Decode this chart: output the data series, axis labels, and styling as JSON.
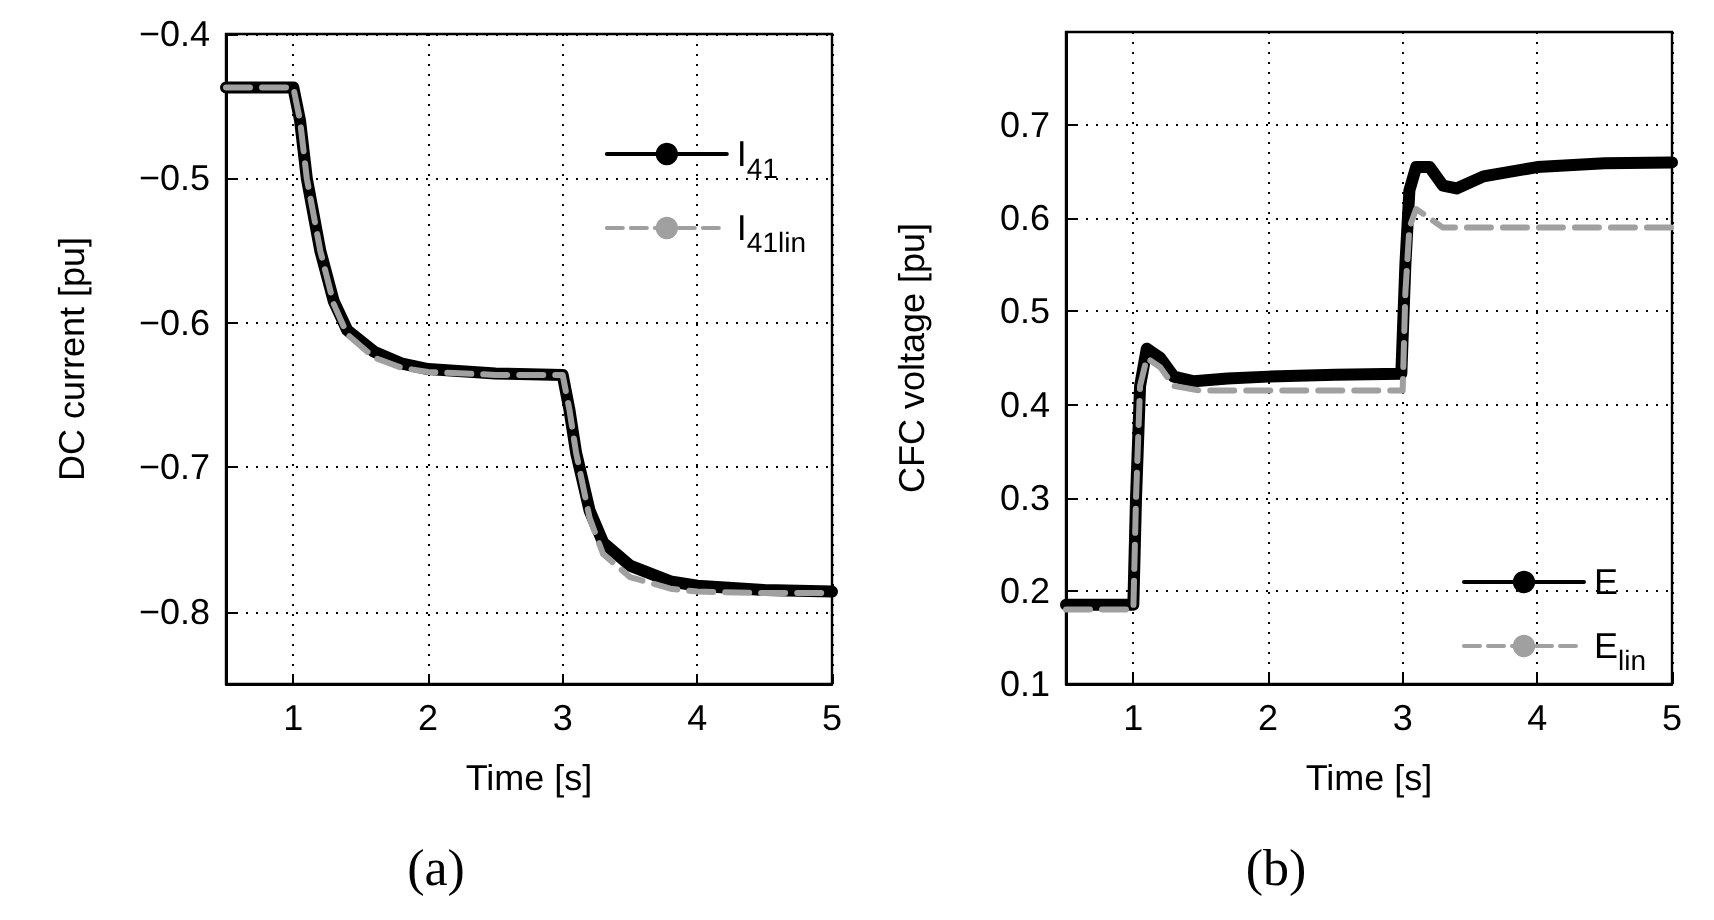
{
  "chart_data": [
    {
      "type": "line",
      "title": "(a)",
      "xlabel": "Time [s]",
      "ylabel": "DC current [pu]",
      "xlim": [
        0.5,
        5
      ],
      "xticks": [
        1,
        2,
        3,
        4,
        5
      ],
      "ylim": [
        -0.85,
        -0.4
      ],
      "yticks": [
        {
          "value": -0.8,
          "label": "−0.8"
        },
        {
          "value": -0.7,
          "label": "−0.7"
        },
        {
          "value": -0.6,
          "label": "−0.6"
        },
        {
          "value": -0.5,
          "label": "−0.5"
        },
        {
          "value": -0.4,
          "label": "−0.4"
        }
      ],
      "grid": true,
      "legend": "top right",
      "marker": "none",
      "series": [
        {
          "name": "I$_{41}$",
          "color": "#000000",
          "line_style": "solid",
          "x": [
            0.5,
            1.0,
            1.05,
            1.1,
            1.2,
            1.3,
            1.4,
            1.6,
            1.8,
            2.0,
            2.5,
            3.0,
            3.05,
            3.1,
            3.2,
            3.3,
            3.5,
            3.8,
            4.0,
            4.5,
            5.0
          ],
          "values": [
            -0.437,
            -0.437,
            -0.46,
            -0.5,
            -0.55,
            -0.585,
            -0.605,
            -0.62,
            -0.628,
            -0.632,
            -0.635,
            -0.636,
            -0.66,
            -0.69,
            -0.73,
            -0.752,
            -0.768,
            -0.779,
            -0.782,
            -0.785,
            -0.786
          ]
        },
        {
          "name": "I$_{41lin}$",
          "color": "#a0a0a0",
          "line_style": "dashed",
          "x": [
            0.5,
            1.0,
            1.05,
            1.1,
            1.2,
            1.3,
            1.4,
            1.6,
            1.8,
            2.0,
            2.5,
            3.0,
            3.05,
            3.1,
            3.2,
            3.3,
            3.5,
            3.8,
            4.0,
            4.5,
            5.0
          ],
          "values": [
            -0.437,
            -0.437,
            -0.46,
            -0.5,
            -0.55,
            -0.587,
            -0.608,
            -0.624,
            -0.631,
            -0.634,
            -0.636,
            -0.636,
            -0.66,
            -0.69,
            -0.735,
            -0.76,
            -0.776,
            -0.784,
            -0.786,
            -0.787,
            -0.787
          ]
        }
      ]
    },
    {
      "type": "line",
      "title": "(b)",
      "xlabel": "Time [s]",
      "ylabel": "CFC voltage [pu]",
      "xlim": [
        0.5,
        5
      ],
      "xticks": [
        1,
        2,
        3,
        4,
        5
      ],
      "ylim": [
        0.1,
        0.8
      ],
      "yticks": [
        0.1,
        0.2,
        0.3,
        0.4,
        0.5,
        0.6,
        0.7
      ],
      "grid": true,
      "legend": "bottom right",
      "marker": "none",
      "series": [
        {
          "name": "E",
          "color": "#000000",
          "line_style": "solid",
          "x": [
            0.5,
            1.0,
            1.02,
            1.05,
            1.1,
            1.2,
            1.3,
            1.45,
            1.7,
            2.0,
            2.5,
            2.99,
            3.02,
            3.05,
            3.1,
            3.2,
            3.3,
            3.4,
            3.6,
            4.0,
            4.5,
            5.0
          ],
          "values": [
            0.185,
            0.185,
            0.3,
            0.42,
            0.46,
            0.45,
            0.43,
            0.425,
            0.428,
            0.43,
            0.432,
            0.433,
            0.55,
            0.63,
            0.655,
            0.655,
            0.635,
            0.632,
            0.645,
            0.655,
            0.659,
            0.66
          ]
        },
        {
          "name": "E$_{lin}$",
          "color": "#a0a0a0",
          "line_style": "dashed",
          "x": [
            0.5,
            1.0,
            1.02,
            1.05,
            1.1,
            1.2,
            1.3,
            1.5,
            3.0,
            3.02,
            3.05,
            3.1,
            3.2,
            3.3,
            3.5,
            5.0
          ],
          "values": [
            0.18,
            0.18,
            0.3,
            0.42,
            0.45,
            0.44,
            0.42,
            0.415,
            0.415,
            0.52,
            0.59,
            0.61,
            0.6,
            0.59,
            0.59,
            0.59
          ]
        }
      ]
    }
  ]
}
